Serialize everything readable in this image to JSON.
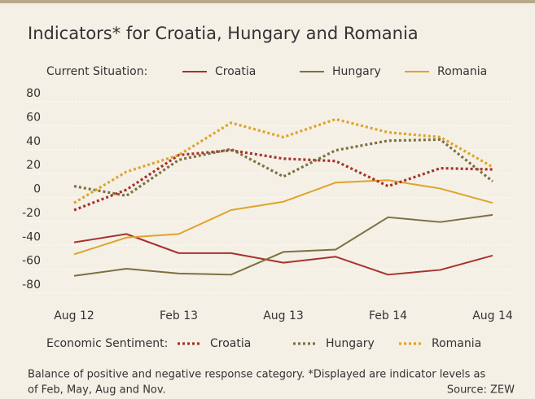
{
  "chart_data": {
    "type": "line",
    "title": "Indicators* for Croatia, Hungary and Romania",
    "legend_groups": [
      "Current Situation:",
      "Economic Sentiment:"
    ],
    "categories": [
      "Aug 12",
      null,
      "Feb 13",
      null,
      "Aug 13",
      null,
      "Feb 14",
      null,
      "Aug 14"
    ],
    "ylim": [
      -80,
      80
    ],
    "yticks": [
      -80,
      -60,
      -40,
      -20,
      0,
      20,
      40,
      60,
      80
    ],
    "grid": true,
    "series": [
      {
        "name": "Croatia",
        "color": "#a8322d",
        "line_style": "solid",
        "group": 0,
        "values": [
          -43,
          -36,
          -52,
          -52,
          -60,
          -55,
          -70,
          -66,
          -54
        ]
      },
      {
        "name": "Hungary",
        "color": "#7d7040",
        "line_style": "solid",
        "group": 0,
        "values": [
          -71,
          -65,
          -69,
          -70,
          -51,
          -49,
          -22,
          -26,
          -20
        ]
      },
      {
        "name": "Romania",
        "color": "#e0a32a",
        "line_style": "solid",
        "group": 0,
        "values": [
          -53,
          -39,
          -36,
          -16,
          -9,
          7,
          9,
          2,
          -10
        ]
      },
      {
        "name": "Croatia",
        "color": "#a8322d",
        "line_style": "dotted",
        "group": 1,
        "values": [
          -16,
          1,
          30,
          34,
          27,
          25,
          4,
          19,
          18
        ]
      },
      {
        "name": "Hungary",
        "color": "#7d7040",
        "line_style": "dotted",
        "group": 1,
        "values": [
          4,
          -4,
          26,
          35,
          12,
          34,
          42,
          43,
          8
        ]
      },
      {
        "name": "Romania",
        "color": "#e0a32a",
        "line_style": "dotted",
        "group": 1,
        "values": [
          -10,
          16,
          30,
          57,
          45,
          60,
          49,
          45,
          20
        ]
      }
    ],
    "notes": [
      "Balance of positive and negative response category. *Displayed are indicator levels as",
      "of Feb, May, Aug and Nov."
    ],
    "source": "Source: ZEW"
  }
}
